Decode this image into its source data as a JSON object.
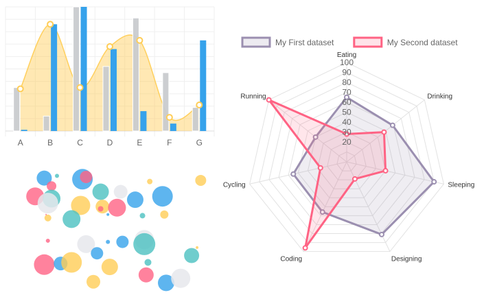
{
  "colors": {
    "grey": "#c9cbcf",
    "blue": "#36a2eb",
    "yellow": "#ffcd56",
    "red": "#ff6384",
    "teal": "#4bc0c0",
    "purple": "#9b8fb0",
    "light": "#e6e7ec"
  },
  "chart_data": [
    {
      "type": "bar",
      "subtype": "bar-with-area-line",
      "categories": [
        "A",
        "B",
        "C",
        "D",
        "E",
        "F",
        "G"
      ],
      "ylim": [
        0,
        100
      ],
      "grid": true,
      "series": [
        {
          "kind": "bar",
          "color": "grey",
          "values": [
            35,
            12,
            100,
            52,
            91,
            47,
            19
          ]
        },
        {
          "kind": "bar",
          "color": "blue",
          "values": [
            1,
            86,
            100,
            66,
            16,
            6,
            73
          ]
        },
        {
          "kind": "area",
          "color": "yellow",
          "values": [
            34,
            86,
            35,
            68,
            73,
            11,
            21
          ]
        }
      ]
    },
    {
      "type": "radar",
      "labels": [
        "Eating",
        "Drinking",
        "Sleeping",
        "Designing",
        "Coding",
        "Cycling",
        "Running"
      ],
      "ticks": [
        "20",
        "30",
        "40",
        "50",
        "60",
        "70",
        "80",
        "90",
        "100"
      ],
      "rmax": 100,
      "legend": "top",
      "series": [
        {
          "name": "My First dataset",
          "color": "purple",
          "values": [
            65,
            59,
            90,
            81,
            56,
            55,
            40
          ]
        },
        {
          "name": "My Second dataset",
          "color": "red",
          "values": [
            28,
            48,
            40,
            19,
            96,
            27,
            100
          ]
        }
      ]
    },
    {
      "type": "scatter",
      "subtype": "bubble",
      "xlim": [
        0,
        100
      ],
      "ylim": [
        0,
        100
      ],
      "points": [
        {
          "x": 13,
          "y": 96,
          "r": 11,
          "color": "blue"
        },
        {
          "x": 20,
          "y": 98,
          "r": 3,
          "color": "teal"
        },
        {
          "x": 17,
          "y": 89,
          "r": 7,
          "color": "red"
        },
        {
          "x": 34,
          "y": 95,
          "r": 15,
          "color": "blue"
        },
        {
          "x": 36,
          "y": 97,
          "r": 9,
          "color": "red"
        },
        {
          "x": 8,
          "y": 80,
          "r": 13,
          "color": "red"
        },
        {
          "x": 17,
          "y": 78,
          "r": 13,
          "color": "teal"
        },
        {
          "x": 15,
          "y": 74,
          "r": 15,
          "color": "light"
        },
        {
          "x": 44,
          "y": 84,
          "r": 12,
          "color": "teal"
        },
        {
          "x": 55,
          "y": 84,
          "r": 10,
          "color": "light"
        },
        {
          "x": 33,
          "y": 72,
          "r": 14,
          "color": "yellow"
        },
        {
          "x": 45,
          "y": 71,
          "r": 10,
          "color": "yellow"
        },
        {
          "x": 53,
          "y": 70,
          "r": 13,
          "color": "red"
        },
        {
          "x": 44,
          "y": 69,
          "r": 4,
          "color": "red"
        },
        {
          "x": 63,
          "y": 77,
          "r": 12,
          "color": "blue"
        },
        {
          "x": 78,
          "y": 80,
          "r": 15,
          "color": "blue"
        },
        {
          "x": 71,
          "y": 93,
          "r": 4,
          "color": "yellow"
        },
        {
          "x": 99,
          "y": 94,
          "r": 8,
          "color": "yellow"
        },
        {
          "x": 28,
          "y": 60,
          "r": 13,
          "color": "teal"
        },
        {
          "x": 15,
          "y": 61,
          "r": 5,
          "color": "yellow"
        },
        {
          "x": 14,
          "y": 64,
          "r": 1,
          "color": "red"
        },
        {
          "x": 48,
          "y": 64,
          "r": 2,
          "color": "blue"
        },
        {
          "x": 67,
          "y": 63,
          "r": 4,
          "color": "teal"
        },
        {
          "x": 79,
          "y": 64,
          "r": 6,
          "color": "yellow"
        },
        {
          "x": 15,
          "y": 41,
          "r": 3,
          "color": "red"
        },
        {
          "x": 36,
          "y": 38,
          "r": 13,
          "color": "light"
        },
        {
          "x": 48,
          "y": 40,
          "r": 3,
          "color": "blue"
        },
        {
          "x": 56,
          "y": 40,
          "r": 9,
          "color": "blue"
        },
        {
          "x": 68,
          "y": 42,
          "r": 14,
          "color": "light"
        },
        {
          "x": 68,
          "y": 38,
          "r": 16,
          "color": "teal"
        },
        {
          "x": 42,
          "y": 30,
          "r": 9,
          "color": "blue"
        },
        {
          "x": 13,
          "y": 20,
          "r": 15,
          "color": "red"
        },
        {
          "x": 22,
          "y": 21,
          "r": 10,
          "color": "blue"
        },
        {
          "x": 28,
          "y": 22,
          "r": 15,
          "color": "yellow"
        },
        {
          "x": 49,
          "y": 18,
          "r": 12,
          "color": "yellow"
        },
        {
          "x": 70,
          "y": 22,
          "r": 5,
          "color": "teal"
        },
        {
          "x": 69,
          "y": 11,
          "r": 11,
          "color": "red"
        },
        {
          "x": 40,
          "y": 5,
          "r": 10,
          "color": "yellow"
        },
        {
          "x": 80,
          "y": 4,
          "r": 12,
          "color": "blue"
        },
        {
          "x": 88,
          "y": 8,
          "r": 14,
          "color": "light"
        },
        {
          "x": 94,
          "y": 28,
          "r": 11,
          "color": "teal"
        },
        {
          "x": 97,
          "y": 35,
          "r": 2,
          "color": "yellow"
        }
      ]
    }
  ]
}
